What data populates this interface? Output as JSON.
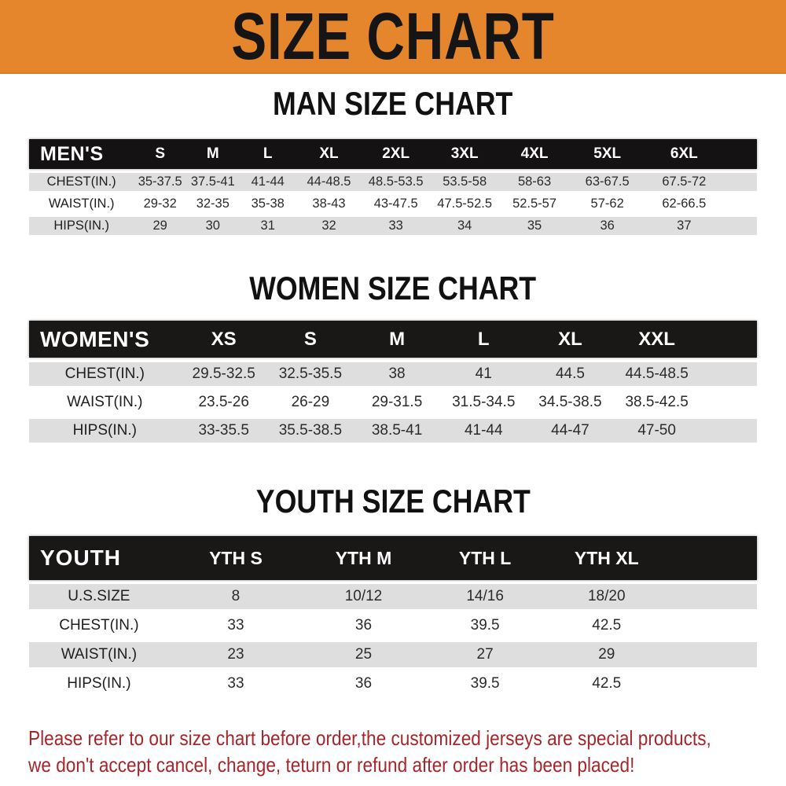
{
  "banner": {
    "title": "SIZE CHART",
    "bg_color": "#E6862C",
    "text_color": "#151515"
  },
  "chart_data": [
    {
      "type": "table",
      "title": "MAN SIZE CHART",
      "corner_label": "MEN'S",
      "columns": [
        "S",
        "M",
        "L",
        "XL",
        "2XL",
        "3XL",
        "4XL",
        "5XL",
        "6XL"
      ],
      "rows": [
        {
          "label": "CHEST(IN.)",
          "values": [
            "35-37.5",
            "37.5-41",
            "41-44",
            "44-48.5",
            "48.5-53.5",
            "53.5-58",
            "58-63",
            "63-67.5",
            "67.5-72"
          ]
        },
        {
          "label": "WAIST(IN.)",
          "values": [
            "29-32",
            "32-35",
            "35-38",
            "38-43",
            "43-47.5",
            "47.5-52.5",
            "52.5-57",
            "57-62",
            "62-66.5"
          ]
        },
        {
          "label": "HIPS(IN.)",
          "values": [
            "29",
            "30",
            "31",
            "32",
            "33",
            "34",
            "35",
            "36",
            "37"
          ]
        }
      ],
      "header_bg": "#141212",
      "stripe_color": "#DEDEDE"
    },
    {
      "type": "table",
      "title": "WOMEN SIZE CHART",
      "corner_label": "WOMEN'S",
      "columns": [
        "XS",
        "S",
        "M",
        "L",
        "XL",
        "XXL"
      ],
      "rows": [
        {
          "label": "CHEST(IN.)",
          "values": [
            "29.5-32.5",
            "32.5-35.5",
            "38",
            "41",
            "44.5",
            "44.5-48.5"
          ]
        },
        {
          "label": "WAIST(IN.)",
          "values": [
            "23.5-26",
            "26-29",
            "29-31.5",
            "31.5-34.5",
            "34.5-38.5",
            "38.5-42.5"
          ]
        },
        {
          "label": "HIPS(IN.)",
          "values": [
            "33-35.5",
            "35.5-38.5",
            "38.5-41",
            "41-44",
            "44-47",
            "47-50"
          ]
        }
      ],
      "header_bg": "#1a1717",
      "stripe_color": "#DEDEDE"
    },
    {
      "type": "table",
      "title": "YOUTH SIZE CHART",
      "corner_label": "YOUTH",
      "columns": [
        "YTH S",
        "YTH M",
        "YTH L",
        "YTH XL"
      ],
      "rows": [
        {
          "label": "U.S.SIZE",
          "values": [
            "8",
            "10/12",
            "14/16",
            "18/20"
          ]
        },
        {
          "label": "CHEST(IN.)",
          "values": [
            "33",
            "36",
            "39.5",
            "42.5"
          ]
        },
        {
          "label": "WAIST(IN.)",
          "values": [
            "23",
            "25",
            "27",
            "29"
          ]
        },
        {
          "label": "HIPS(IN.)",
          "values": [
            "33",
            "36",
            "39.5",
            "42.5"
          ]
        }
      ],
      "header_bg": "#1a1717",
      "stripe_color": "#DEDEDE"
    }
  ],
  "notice": {
    "line1": "Please refer to our size chart before order,the customized jerseys are special products,",
    "line2": "we don't accept cancel, change, teturn or refund after order has been placed!",
    "color": "#A6262B"
  }
}
